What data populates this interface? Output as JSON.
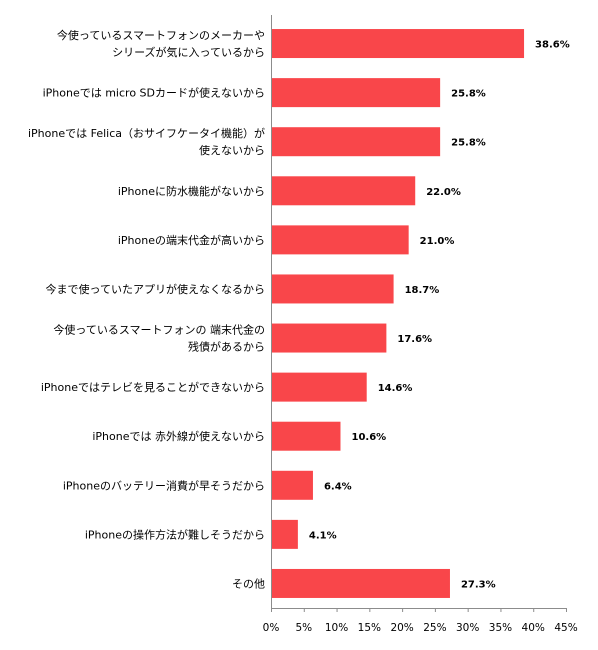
{
  "chart_data": {
    "type": "bar",
    "orientation": "horizontal",
    "categories": [
      [
        "今使っているスマートフォンのメーカーや",
        "シリーズが気に入っているから"
      ],
      [
        "iPhoneでは micro SDカードが使えないから"
      ],
      [
        "iPhoneでは Felica（おサイフケータイ機能）が",
        "使えないから"
      ],
      [
        "iPhoneに防水機能がないから"
      ],
      [
        "iPhoneの端末代金が高いから"
      ],
      [
        "今まで使っていたアプリが使えなくなるから"
      ],
      [
        "今使っているスマートフォンの 端末代金の",
        "残債があるから"
      ],
      [
        "iPhoneではテレビを見ることができないから"
      ],
      [
        "iPhoneでは 赤外線が使えないから"
      ],
      [
        "iPhoneのバッテリー消費が早そうだから"
      ],
      [
        "iPhoneの操作方法が難しそうだから"
      ],
      [
        "その他"
      ]
    ],
    "values": [
      38.6,
      25.8,
      25.8,
      22.0,
      21.0,
      18.7,
      17.6,
      14.6,
      10.6,
      6.4,
      4.1,
      27.3
    ],
    "value_labels": [
      "38.6%",
      "25.8%",
      "25.8%",
      "22.0%",
      "21.0%",
      "18.7%",
      "17.6%",
      "14.6%",
      "10.6%",
      "6.4%",
      "4.1%",
      "27.3%"
    ],
    "xticks": [
      "0%",
      "5%",
      "10%",
      "15%",
      "20%",
      "25%",
      "30%",
      "35%",
      "40%",
      "45%"
    ],
    "xlim": [
      0,
      45
    ],
    "bar_color": "#f9464a",
    "axis_color": "#8c8c8c",
    "grid": false,
    "legend": "none"
  }
}
